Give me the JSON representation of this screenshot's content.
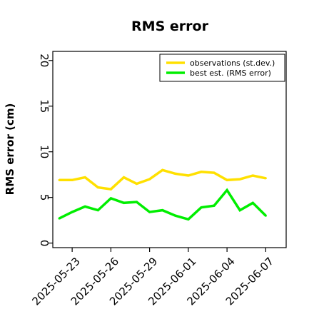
{
  "chart_data": {
    "type": "line",
    "title": "RMS error",
    "xlabel": "",
    "ylabel": "RMS error (cm)",
    "x": [
      "2025-05-22",
      "2025-05-23",
      "2025-05-24",
      "2025-05-25",
      "2025-05-26",
      "2025-05-27",
      "2025-05-28",
      "2025-05-29",
      "2025-05-30",
      "2025-05-31",
      "2025-06-01",
      "2025-06-02",
      "2025-06-03",
      "2025-06-04",
      "2025-06-05",
      "2025-06-06",
      "2025-06-07"
    ],
    "xlim": [
      "2025-05-21T12:00",
      "2025-06-08T14:00"
    ],
    "ylim": [
      -0.5,
      21
    ],
    "yticks": [
      0,
      5,
      10,
      15,
      20
    ],
    "xticks": [
      "2025-05-23",
      "2025-05-26",
      "2025-05-29",
      "2025-06-01",
      "2025-06-04",
      "2025-06-07"
    ],
    "highlight_tick": "2025-05-29",
    "series": [
      {
        "name": "observations (st.dev.)",
        "color": "#ffe000",
        "values": [
          6.9,
          6.9,
          7.2,
          6.1,
          5.9,
          7.2,
          6.5,
          7.0,
          8.0,
          7.6,
          7.4,
          7.8,
          7.7,
          6.9,
          7.0,
          7.4,
          7.1
        ]
      },
      {
        "name": "best est. (RMS error)",
        "color": "#00ee00",
        "values": [
          2.7,
          3.4,
          4.0,
          3.6,
          4.9,
          4.4,
          4.5,
          3.4,
          3.6,
          3.0,
          2.6,
          3.9,
          4.1,
          5.8,
          3.6,
          4.4,
          3.0
        ]
      }
    ],
    "legend_position": "top-right",
    "grid": false
  },
  "colors": {
    "highlight_tick_color": "#228b22"
  }
}
